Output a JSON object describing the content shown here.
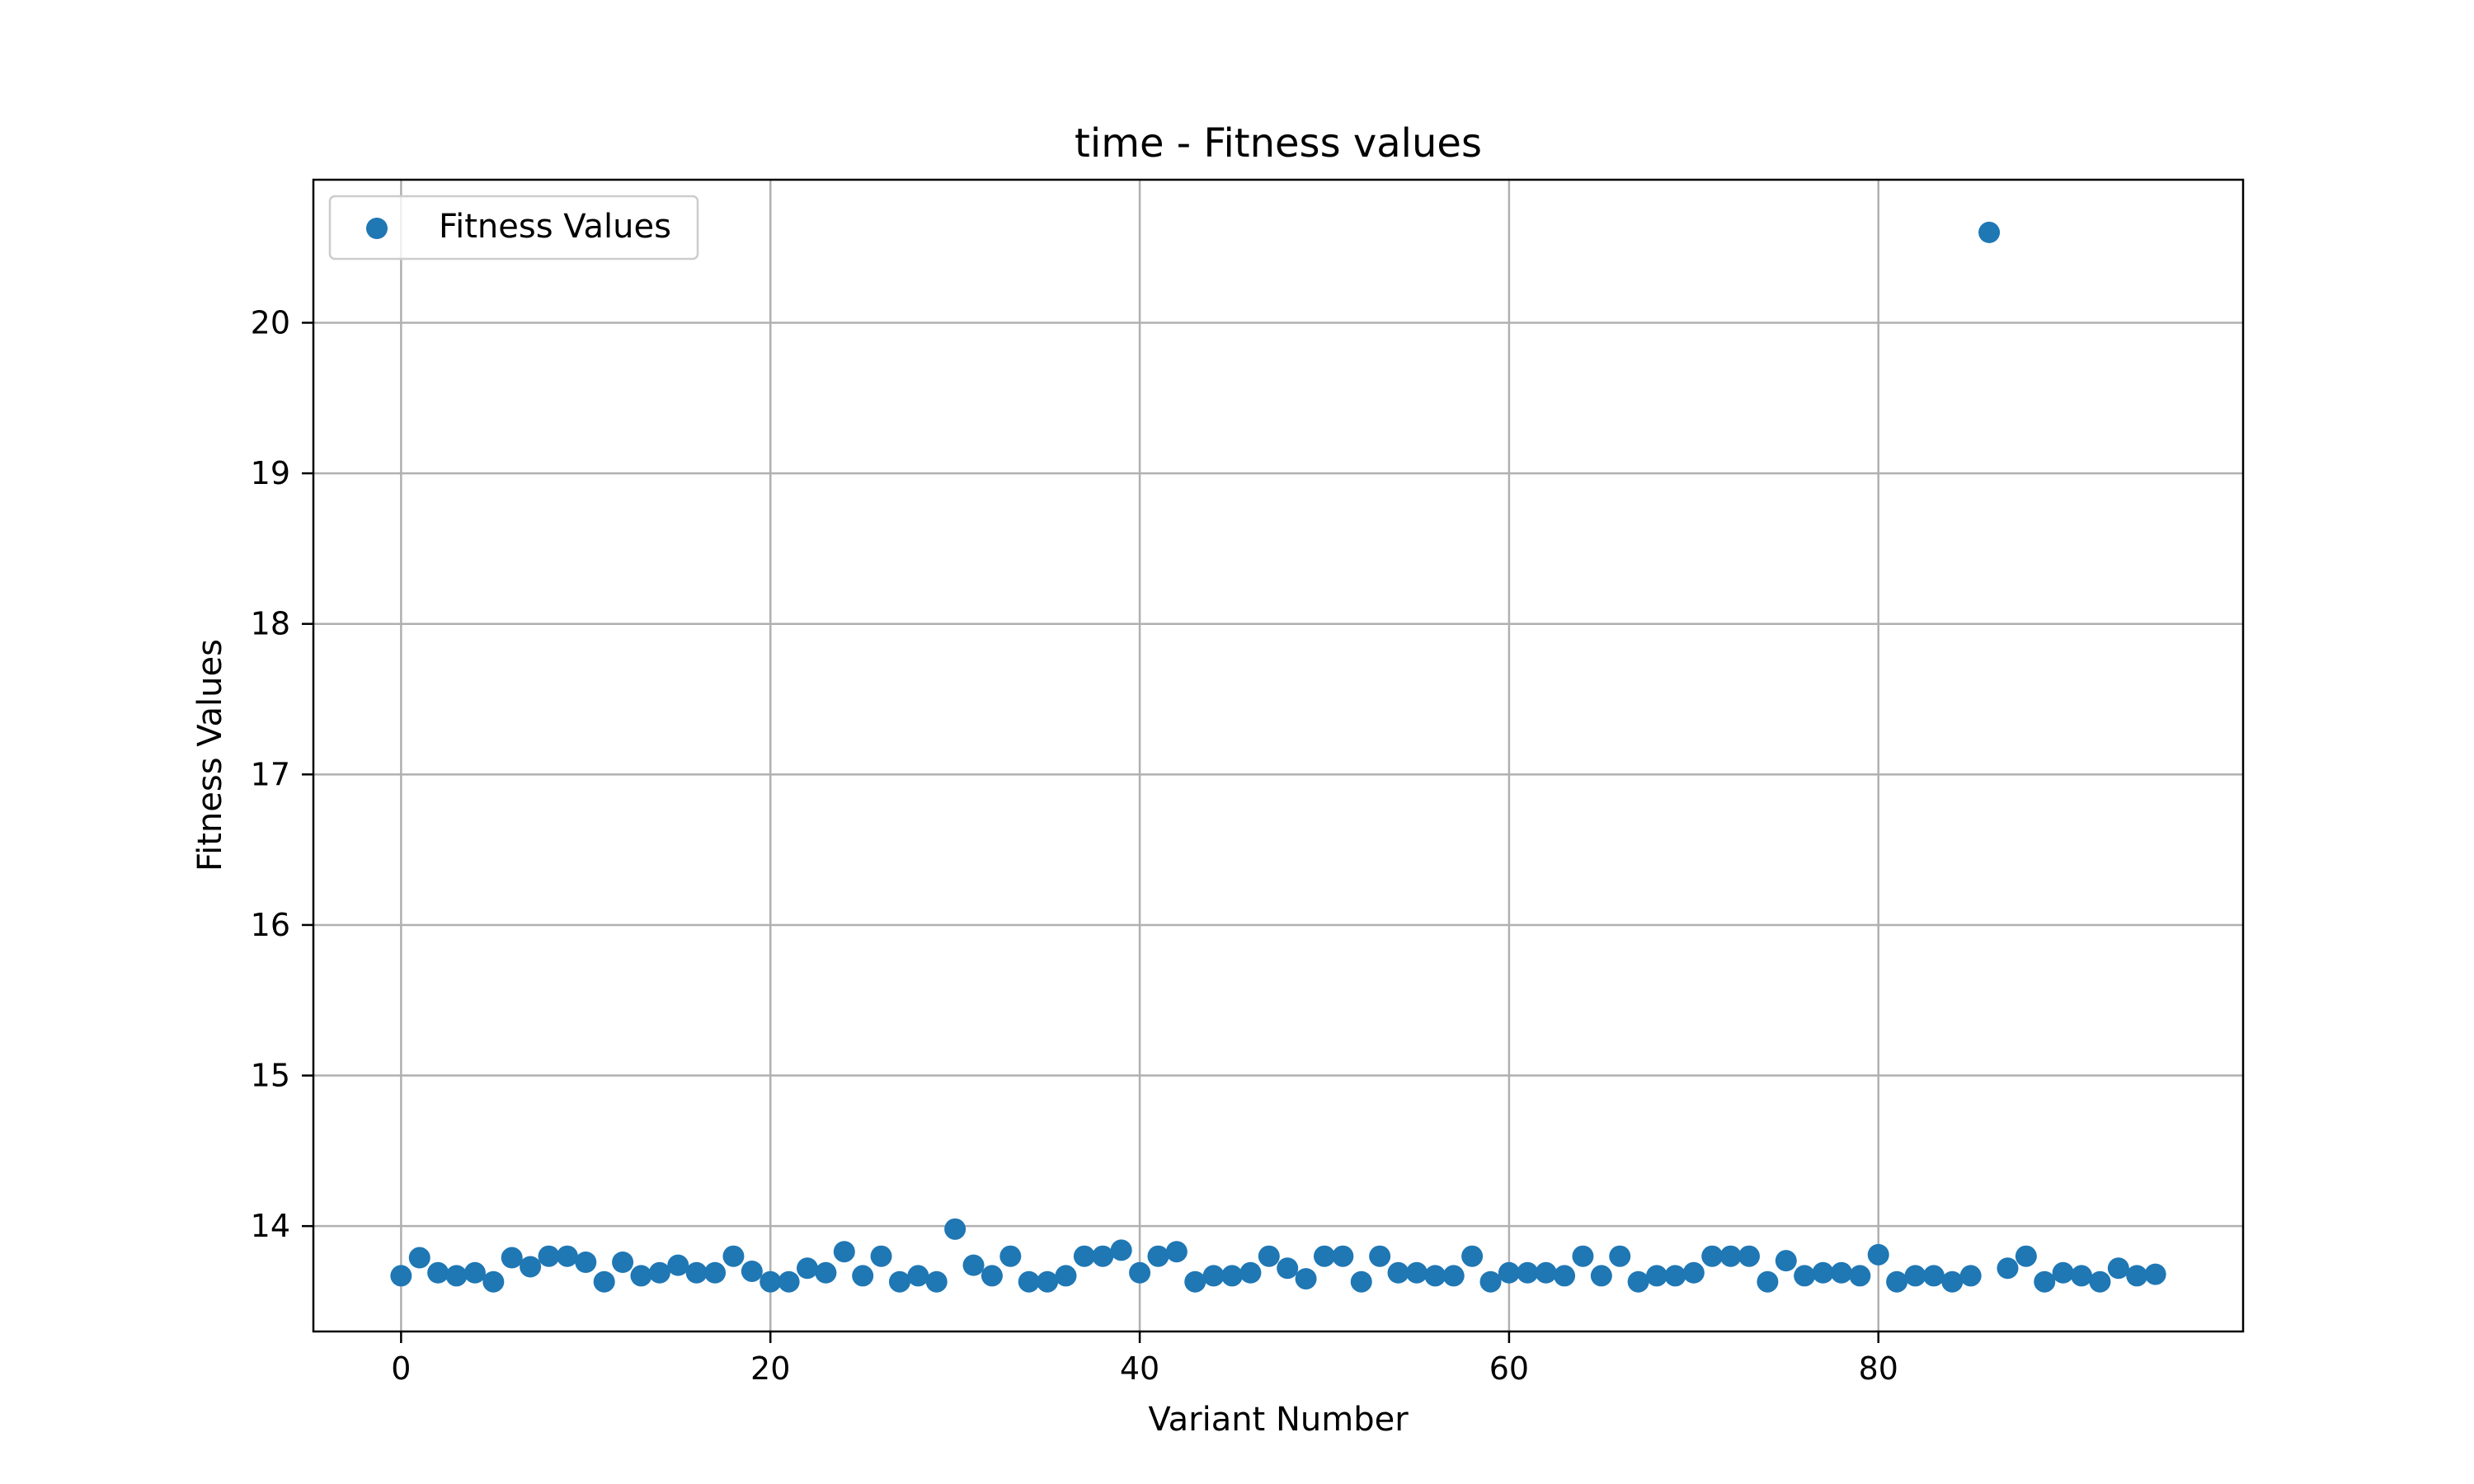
{
  "chart_data": {
    "type": "scatter",
    "title": "time - Fitness values",
    "xlabel": "Variant Number",
    "ylabel": "Fitness Values",
    "xlim": [
      -4.75,
      99.75
    ],
    "ylim": [
      13.3,
      20.95
    ],
    "xticks": [
      0,
      20,
      40,
      60,
      80
    ],
    "yticks": [
      14,
      15,
      16,
      17,
      18,
      19,
      20
    ],
    "grid": true,
    "legend_position": "top-left",
    "color": "#1f77b4",
    "series": [
      {
        "name": "Fitness Values",
        "x": [
          0,
          1,
          2,
          3,
          4,
          5,
          6,
          7,
          8,
          9,
          10,
          11,
          12,
          13,
          14,
          15,
          16,
          17,
          18,
          19,
          20,
          21,
          22,
          23,
          24,
          25,
          26,
          27,
          28,
          29,
          30,
          31,
          32,
          33,
          34,
          35,
          36,
          37,
          38,
          39,
          40,
          41,
          42,
          43,
          44,
          45,
          46,
          47,
          48,
          49,
          50,
          51,
          52,
          53,
          54,
          55,
          56,
          57,
          58,
          59,
          60,
          61,
          62,
          63,
          64,
          65,
          66,
          67,
          68,
          69,
          70,
          71,
          72,
          73,
          74,
          75,
          76,
          77,
          78,
          79,
          80,
          81,
          82,
          83,
          84,
          85,
          86,
          87,
          88,
          89,
          90,
          91,
          92,
          93,
          94,
          95
        ],
        "y": [
          13.67,
          13.79,
          13.69,
          13.67,
          13.69,
          13.63,
          13.79,
          13.73,
          13.8,
          13.8,
          13.76,
          13.63,
          13.76,
          13.67,
          13.69,
          13.74,
          13.69,
          13.69,
          13.8,
          13.7,
          13.63,
          13.63,
          13.72,
          13.69,
          13.83,
          13.67,
          13.8,
          13.63,
          13.67,
          13.63,
          13.98,
          13.74,
          13.67,
          13.8,
          13.63,
          13.63,
          13.67,
          13.8,
          13.8,
          13.84,
          13.69,
          13.8,
          13.83,
          13.63,
          13.67,
          13.67,
          13.69,
          13.8,
          13.72,
          13.65,
          13.8,
          13.8,
          13.63,
          13.8,
          13.69,
          13.69,
          13.67,
          13.67,
          13.8,
          13.63,
          13.69,
          13.69,
          13.69,
          13.67,
          13.8,
          13.67,
          13.8,
          13.63,
          13.67,
          13.67,
          13.69,
          13.8,
          13.8,
          13.8,
          13.63,
          13.77,
          13.67,
          13.69,
          13.69,
          13.67,
          13.81,
          13.63,
          13.67,
          13.67,
          13.63,
          13.67,
          20.6,
          13.72,
          13.8,
          13.63,
          13.69,
          13.67,
          13.63,
          13.72,
          13.67,
          13.68
        ]
      }
    ]
  }
}
